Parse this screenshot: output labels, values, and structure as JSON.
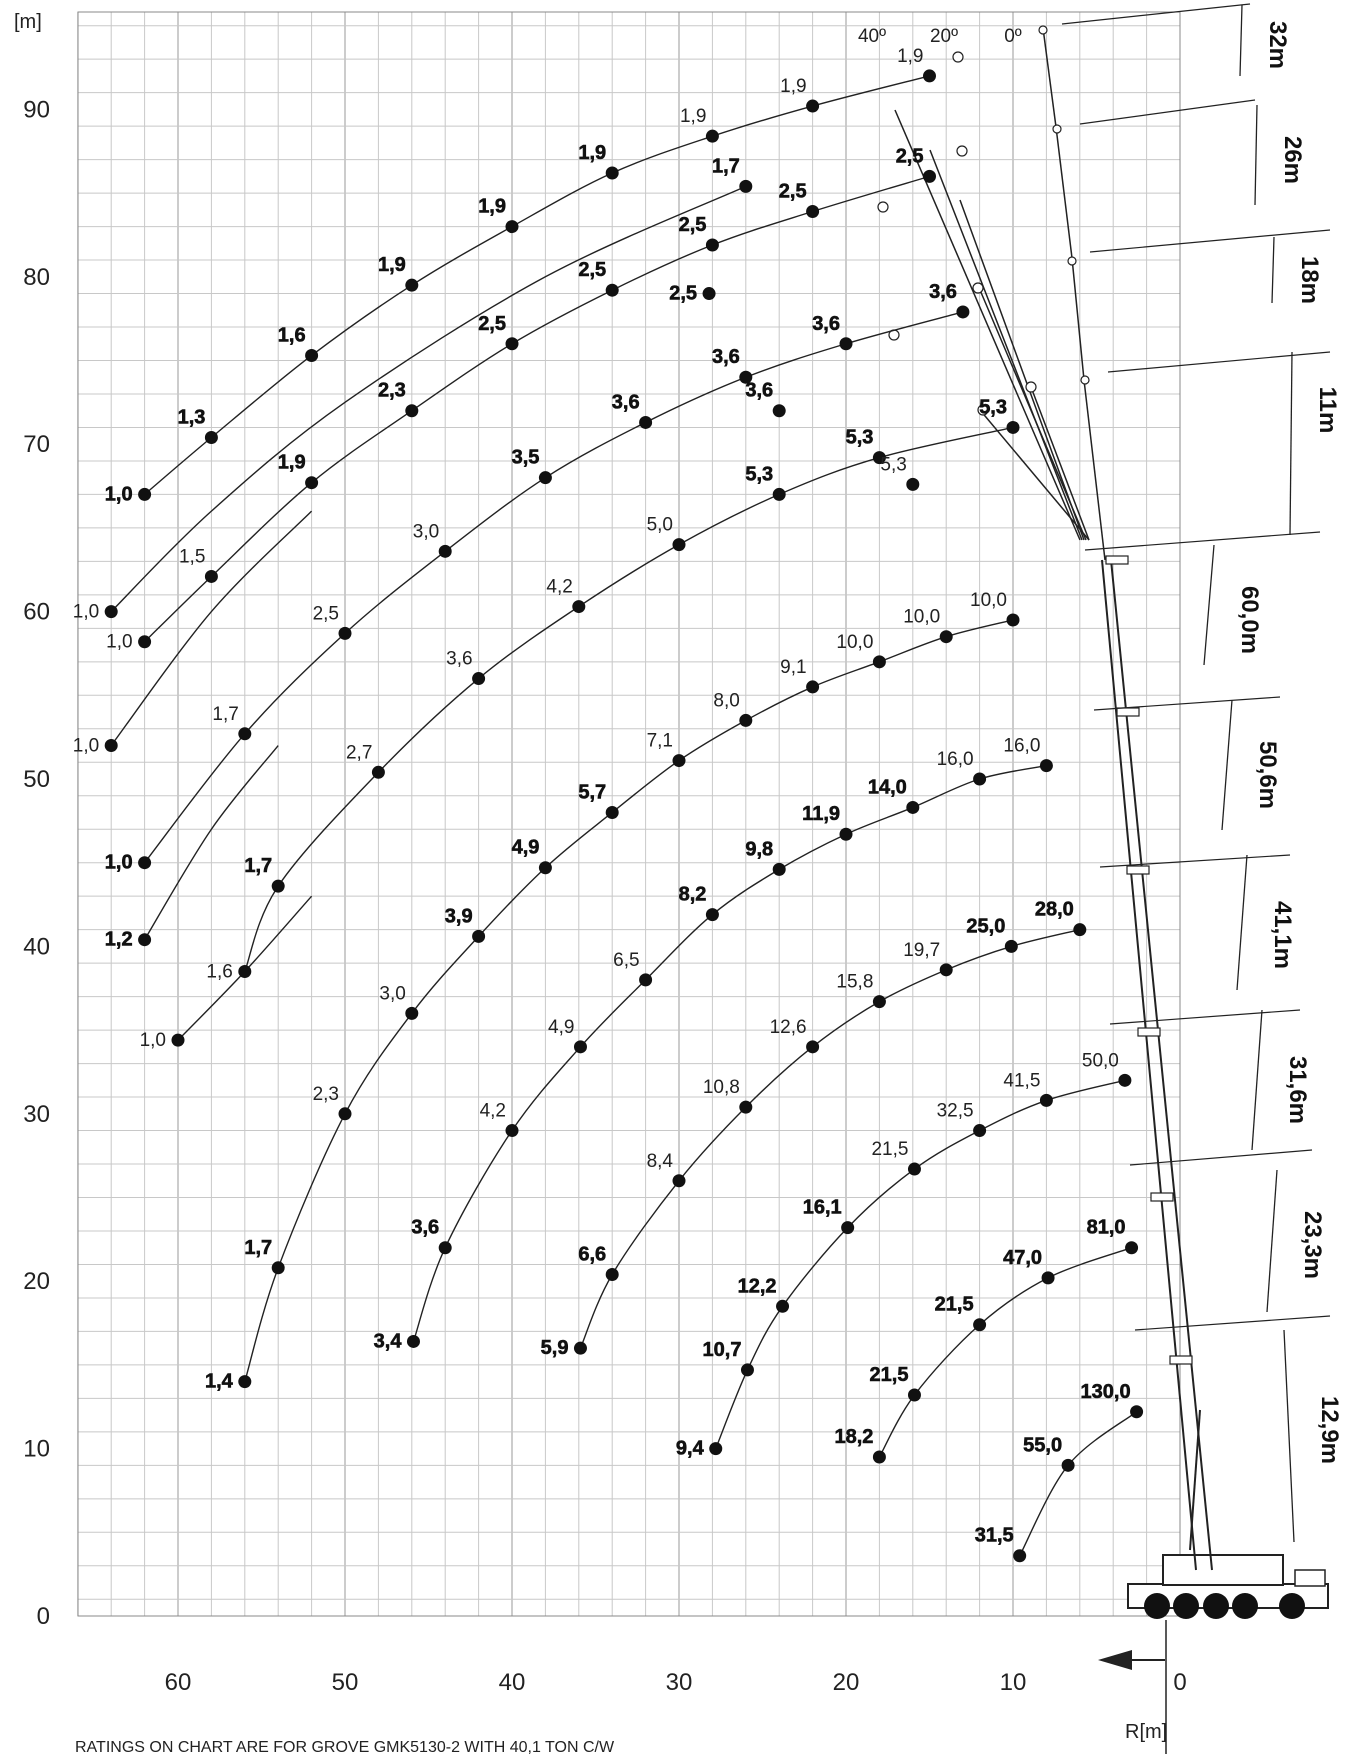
{
  "chart_data": {
    "type": "line",
    "title": "",
    "xlabel": "R[m]",
    "ylabel": "[m]",
    "x_axis": {
      "min": -6.5,
      "max": 66,
      "ticks": [
        60,
        50,
        40,
        30,
        20,
        10,
        0
      ],
      "reversed": true
    },
    "y_axis": {
      "min": -1,
      "max": 97,
      "ticks": [
        0,
        10,
        20,
        30,
        40,
        50,
        60,
        70,
        80,
        90
      ]
    },
    "grid": true,
    "footer": "RATINGS ON CHART ARE FOR GROVE GMK5130-2 WITH 40,1 TON C/W",
    "boom_lengths": [
      "12,9m",
      "23,3m",
      "31,6m",
      "41,1m",
      "50,6m",
      "60,0m"
    ],
    "jib_lengths": [
      "11m",
      "18m",
      "26m",
      "32m"
    ],
    "jib_angles": [
      "40º",
      "20º",
      "0º"
    ],
    "series": [
      {
        "points": [
          {
            "x": 9.6,
            "y": 3.6,
            "label": "31,5",
            "bold": true
          },
          {
            "x": 6.7,
            "y": 9.0,
            "label": "55,0",
            "bold": true
          },
          {
            "x": 2.6,
            "y": 12.2,
            "label": "130,0",
            "bold": true
          }
        ]
      },
      {
        "points": [
          {
            "x": 18.0,
            "y": 9.5,
            "label": "18,2",
            "bold": true
          },
          {
            "x": 15.9,
            "y": 13.2,
            "label": "21,5",
            "bold": true
          },
          {
            "x": 12.0,
            "y": 17.4,
            "label": "21,5",
            "bold": true
          },
          {
            "x": 7.9,
            "y": 20.2,
            "label": "47,0",
            "bold": true
          },
          {
            "x": 2.9,
            "y": 22.0,
            "label": "81,0",
            "bold": true
          }
        ]
      },
      {
        "points": [
          {
            "x": 27.8,
            "y": 10.0,
            "label": "9,4",
            "bold": true
          },
          {
            "x": 25.9,
            "y": 14.7,
            "label": "10,7",
            "bold": true
          },
          {
            "x": 23.8,
            "y": 18.5,
            "label": "12,2",
            "bold": true
          },
          {
            "x": 19.9,
            "y": 23.2,
            "label": "16,1",
            "bold": true
          },
          {
            "x": 15.9,
            "y": 26.7,
            "label": "21,5",
            "bold": false
          },
          {
            "x": 12.0,
            "y": 29.0,
            "label": "32,5",
            "bold": false
          },
          {
            "x": 8.0,
            "y": 30.8,
            "label": "41,5",
            "bold": false
          },
          {
            "x": 3.3,
            "y": 32.0,
            "label": "50,0",
            "bold": false
          }
        ]
      },
      {
        "points": [
          {
            "x": 35.9,
            "y": 16.0,
            "label": "5,9",
            "bold": true
          },
          {
            "x": 34.0,
            "y": 20.4,
            "label": "6,6",
            "bold": true
          },
          {
            "x": 30.0,
            "y": 26.0,
            "label": "8,4",
            "bold": false
          },
          {
            "x": 26.0,
            "y": 30.4,
            "label": "10,8",
            "bold": false
          },
          {
            "x": 22.0,
            "y": 34.0,
            "label": "12,6",
            "bold": false
          },
          {
            "x": 18.0,
            "y": 36.7,
            "label": "15,8",
            "bold": false
          },
          {
            "x": 14.0,
            "y": 38.6,
            "label": "19,7",
            "bold": false
          },
          {
            "x": 10.1,
            "y": 40.0,
            "label": "25,0",
            "bold": true
          },
          {
            "x": 6.0,
            "y": 41.0,
            "label": "28,0",
            "bold": true
          }
        ]
      },
      {
        "points": [
          {
            "x": 45.9,
            "y": 16.4,
            "label": "3,4",
            "bold": true
          },
          {
            "x": 44.0,
            "y": 22.0,
            "label": "3,6",
            "bold": true
          },
          {
            "x": 40.0,
            "y": 29.0,
            "label": "4,2",
            "bold": false
          },
          {
            "x": 35.9,
            "y": 34.0,
            "label": "4,9",
            "bold": false
          },
          {
            "x": 32.0,
            "y": 38.0,
            "label": "6,5",
            "bold": false
          },
          {
            "x": 28.0,
            "y": 41.9,
            "label": "8,2",
            "bold": true
          },
          {
            "x": 24.0,
            "y": 44.6,
            "label": "9,8",
            "bold": true
          },
          {
            "x": 20.0,
            "y": 46.7,
            "label": "11,9",
            "bold": true
          },
          {
            "x": 16.0,
            "y": 48.3,
            "label": "14,0",
            "bold": true
          },
          {
            "x": 12.0,
            "y": 50.0,
            "label": "16,0",
            "bold": false
          },
          {
            "x": 8.0,
            "y": 50.8,
            "label": "16,0",
            "bold": false
          }
        ]
      },
      {
        "points": [
          {
            "x": 56.0,
            "y": 14.0,
            "label": "1,4",
            "bold": true
          },
          {
            "x": 54.0,
            "y": 20.8,
            "label": "1,7",
            "bold": true
          },
          {
            "x": 50.0,
            "y": 30.0,
            "label": "2,3",
            "bold": false
          },
          {
            "x": 46.0,
            "y": 36.0,
            "label": "3,0",
            "bold": false
          },
          {
            "x": 42.0,
            "y": 40.6,
            "label": "3,9",
            "bold": true
          },
          {
            "x": 38.0,
            "y": 44.7,
            "label": "4,9",
            "bold": true
          },
          {
            "x": 34.0,
            "y": 48.0,
            "label": "5,7",
            "bold": true
          },
          {
            "x": 30.0,
            "y": 51.1,
            "label": "7,1",
            "bold": false
          },
          {
            "x": 26.0,
            "y": 53.5,
            "label": "8,0",
            "bold": false
          },
          {
            "x": 22.0,
            "y": 55.5,
            "label": "9,1",
            "bold": false
          },
          {
            "x": 18.0,
            "y": 57.0,
            "label": "10,0",
            "bold": false
          },
          {
            "x": 14.0,
            "y": 58.5,
            "label": "10,0",
            "bold": false
          },
          {
            "x": 10.0,
            "y": 59.5,
            "label": "10,0",
            "bold": false
          }
        ]
      },
      {
        "points": [
          {
            "x": 56.0,
            "y": 38.5,
            "label": "1,6",
            "bold": false
          },
          {
            "x": 54.0,
            "y": 43.6,
            "label": "1,7",
            "bold": true
          },
          {
            "x": 48.0,
            "y": 50.4,
            "label": "2,7",
            "bold": false
          },
          {
            "x": 42.0,
            "y": 56.0,
            "label": "3,6",
            "bold": false
          },
          {
            "x": 36.0,
            "y": 60.3,
            "label": "4,2",
            "bold": false
          },
          {
            "x": 30.0,
            "y": 64.0,
            "label": "5,0",
            "bold": false
          },
          {
            "x": 24.0,
            "y": 67.0,
            "label": "5,3",
            "bold": true
          },
          {
            "x": 18.0,
            "y": 69.2,
            "label": "5,3",
            "bold": true
          },
          {
            "x": 10.0,
            "y": 71.0,
            "label": "5,3",
            "bold": true
          }
        ]
      },
      {
        "points": [
          {
            "x": 16.0,
            "y": 67.6,
            "label": "5,3",
            "bold": false
          }
        ]
      },
      {
        "points": [
          {
            "x": 60.0,
            "y": 34.4,
            "label": "1,0",
            "bold": false
          },
          {
            "x": 56.0,
            "y": 38.5,
            "label": "",
            "bold": false
          },
          {
            "x": 52.0,
            "y": 43.0,
            "label": "",
            "bold": false
          }
        ]
      },
      {
        "points": [
          {
            "x": 62.0,
            "y": 40.4,
            "label": "1,2",
            "bold": true
          },
          {
            "x": 58.0,
            "y": 47.0,
            "label": "",
            "bold": false
          },
          {
            "x": 54.0,
            "y": 52.0,
            "label": "",
            "bold": false
          }
        ]
      },
      {
        "points": [
          {
            "x": 62.0,
            "y": 45.0,
            "label": "1,0",
            "bold": true
          },
          {
            "x": 56.0,
            "y": 52.7,
            "label": "1,7",
            "bold": false
          },
          {
            "x": 50.0,
            "y": 58.7,
            "label": "2,5",
            "bold": false
          },
          {
            "x": 44.0,
            "y": 63.6,
            "label": "3,0",
            "bold": false
          },
          {
            "x": 38.0,
            "y": 68.0,
            "label": "3,5",
            "bold": true
          },
          {
            "x": 32.0,
            "y": 71.3,
            "label": "3,6",
            "bold": true
          },
          {
            "x": 26.0,
            "y": 74.0,
            "label": "3,6",
            "bold": true
          },
          {
            "x": 20.0,
            "y": 76.0,
            "label": "3,6",
            "bold": true
          },
          {
            "x": 13.0,
            "y": 77.9,
            "label": "3,6",
            "bold": true
          }
        ]
      },
      {
        "points": [
          {
            "x": 24.0,
            "y": 72.0,
            "label": "3,6",
            "bold": true
          }
        ]
      },
      {
        "points": [
          {
            "x": 64.0,
            "y": 52.0,
            "label": "1,0",
            "bold": false
          },
          {
            "x": 58.0,
            "y": 60.0,
            "label": "",
            "bold": false
          },
          {
            "x": 52.0,
            "y": 66.0,
            "label": "",
            "bold": false
          }
        ]
      },
      {
        "points": [
          {
            "x": 62.0,
            "y": 58.2,
            "label": "1,0",
            "bold": false
          },
          {
            "x": 58.0,
            "y": 62.1,
            "label": "1,5",
            "bold": false
          },
          {
            "x": 52.0,
            "y": 67.7,
            "label": "1,9",
            "bold": true
          },
          {
            "x": 46.0,
            "y": 72.0,
            "label": "2,3",
            "bold": true
          },
          {
            "x": 40.0,
            "y": 76.0,
            "label": "2,5",
            "bold": true
          },
          {
            "x": 34.0,
            "y": 79.2,
            "label": "2,5",
            "bold": true
          },
          {
            "x": 28.0,
            "y": 81.9,
            "label": "2,5",
            "bold": true
          },
          {
            "x": 22.0,
            "y": 83.9,
            "label": "2,5",
            "bold": true
          },
          {
            "x": 15.0,
            "y": 86.0,
            "label": "2,5",
            "bold": true
          }
        ]
      },
      {
        "points": [
          {
            "x": 28.2,
            "y": 79.0,
            "label": "2,5",
            "bold": true
          }
        ]
      },
      {
        "points": [
          {
            "x": 64.0,
            "y": 60.0,
            "label": "1,0",
            "bold": false
          },
          {
            "x": 58.0,
            "y": 66.0,
            "label": "",
            "bold": false
          },
          {
            "x": 50.0,
            "y": 72.5,
            "label": "",
            "bold": false
          },
          {
            "x": 38.0,
            "y": 80.0,
            "label": "",
            "bold": false
          },
          {
            "x": 26.0,
            "y": 85.4,
            "label": "1,7",
            "bold": true
          }
        ]
      },
      {
        "points": [
          {
            "x": 62.0,
            "y": 67.0,
            "label": "1,0",
            "bold": true
          },
          {
            "x": 58.0,
            "y": 70.4,
            "label": "1,3",
            "bold": true
          },
          {
            "x": 52.0,
            "y": 75.3,
            "label": "1,6",
            "bold": true
          },
          {
            "x": 46.0,
            "y": 79.5,
            "label": "1,9",
            "bold": true
          },
          {
            "x": 40.0,
            "y": 83.0,
            "label": "1,9",
            "bold": true
          },
          {
            "x": 34.0,
            "y": 86.2,
            "label": "1,9",
            "bold": true
          },
          {
            "x": 28.0,
            "y": 88.4,
            "label": "1,9",
            "bold": false
          },
          {
            "x": 22.0,
            "y": 90.2,
            "label": "1,9",
            "bold": false
          },
          {
            "x": 15.0,
            "y": 92.0,
            "label": "1,9",
            "bold": false
          }
        ]
      }
    ]
  }
}
